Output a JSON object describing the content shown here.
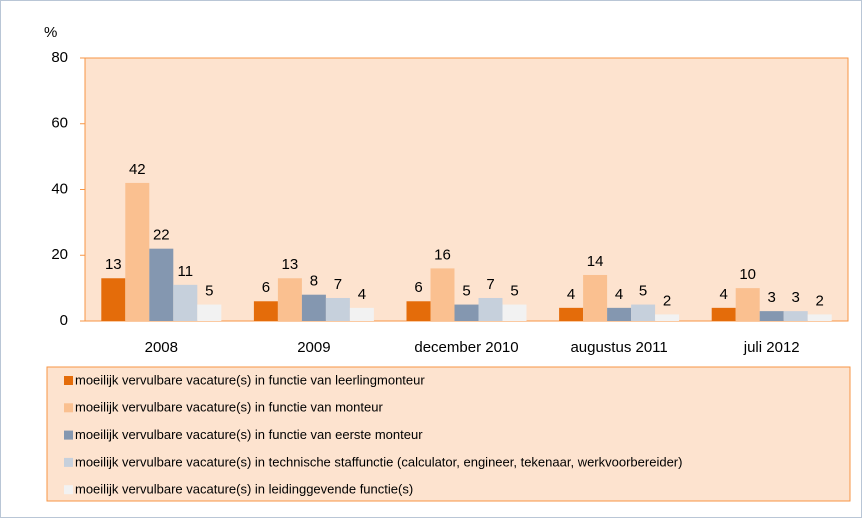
{
  "chart_data": {
    "type": "bar",
    "y_label": "%",
    "categories": [
      "2008",
      "2009",
      "december 2010",
      "augustus 2011",
      "juli 2012"
    ],
    "series": [
      {
        "name": "moeilijk vervulbare vacature(s) in functie van leerlingmonteur",
        "color": "#e46c0a",
        "values": [
          13,
          6,
          6,
          4,
          4
        ]
      },
      {
        "name": "moeilijk vervulbare vacature(s) in functie van monteur",
        "color": "#fac090",
        "values": [
          42,
          13,
          16,
          14,
          10
        ]
      },
      {
        "name": "moeilijk vervulbare vacature(s) in functie van eerste monteur",
        "color": "#8497b0",
        "values": [
          22,
          8,
          5,
          4,
          3
        ]
      },
      {
        "name": "moeilijk vervulbare vacature(s) in technische staffunctie (calculator, engineer, tekenaar, werkvoorbereider)",
        "color": "#c6d0dc",
        "values": [
          11,
          7,
          7,
          5,
          3
        ]
      },
      {
        "name": "moeilijk vervulbare vacature(s) in leidinggevende functie(s)",
        "color": "#f2f2f2",
        "values": [
          5,
          4,
          5,
          2,
          2
        ]
      }
    ],
    "ylim": [
      0,
      80
    ],
    "yticks": [
      0,
      20,
      40,
      60,
      80
    ],
    "legend": "bottom",
    "plot_background": "#fde3cf",
    "border_color": "#f79646"
  }
}
